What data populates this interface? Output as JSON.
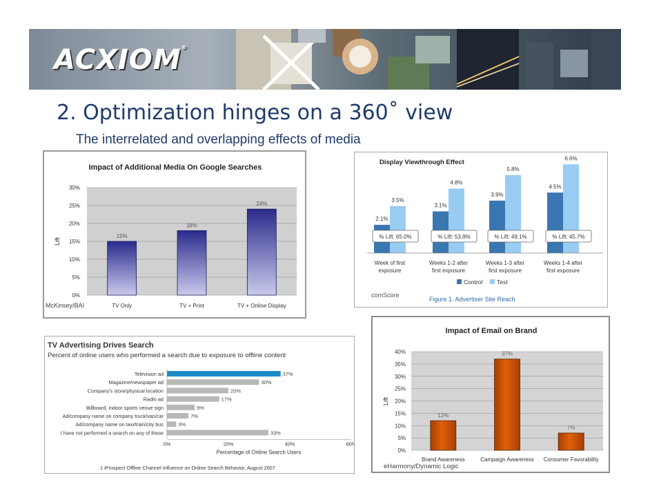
{
  "header": {
    "logo_text": "ACXIOM",
    "title": "2.  Optimization hinges on a 360˚ view",
    "subtitle": "The interrelated and overlapping effects of media"
  },
  "chart_data": [
    {
      "id": "google",
      "type": "bar",
      "title": "Impact of Additional Media On Google Searches",
      "ylabel": "Lift",
      "categories": [
        "TV Only",
        "TV + Print",
        "TV + Online Display"
      ],
      "values": [
        15,
        18,
        24
      ],
      "data_labels": [
        "15%",
        "18%",
        "24%"
      ],
      "yticks": [
        "0%",
        "5%",
        "10%",
        "15%",
        "20%",
        "25%",
        "30%"
      ],
      "ylim": [
        0,
        30
      ],
      "source": "McKinsey/BAI",
      "color": "#2b2b8c"
    },
    {
      "id": "display",
      "type": "bar",
      "title": "Display Viewthrough Effect",
      "categories": [
        "Week of first exposure",
        "Weeks 1-2 after first exposure",
        "Weeks 1-3 after first exposure",
        "Weeks 1-4 after first exposure"
      ],
      "category_lines": [
        [
          "Week of first",
          "exposure"
        ],
        [
          "Weeks 1-2 after",
          "first exposure"
        ],
        [
          "Weeks 1-3 after",
          "first exposure"
        ],
        [
          "Weeks 1-4 after",
          "first exposure"
        ]
      ],
      "series": [
        {
          "name": "Control",
          "values": [
            2.1,
            3.1,
            3.9,
            4.5
          ],
          "labels": [
            "2.1%",
            "3.1%",
            "3.9%",
            "4.5%"
          ],
          "color": "#3a76b0"
        },
        {
          "name": "Test",
          "values": [
            3.5,
            4.8,
            5.8,
            6.6
          ],
          "labels": [
            "3.5%",
            "4.8%",
            "5.8%",
            "6.6%"
          ],
          "color": "#99ccf2"
        }
      ],
      "lift_labels": [
        "% Lift: 65.0%",
        "% Lift: 53.8%",
        "% Lift: 49.1%",
        "% Lift: 45.7%"
      ],
      "ylim": [
        0,
        7
      ],
      "source": "comScore",
      "caption": "Figure 1. Advertiser Site Reach"
    },
    {
      "id": "tv",
      "type": "bar",
      "orientation": "horizontal",
      "title": "TV Advertising Drives Search",
      "title_sup": "1",
      "subtitle": "Percent of online users who performed a search due to exposure to offline content",
      "categories": [
        "Television ad",
        "Magazine/newspaper ad",
        "Company's store/physical location",
        "Radio ad",
        "Billboard, indoor sports venue sign",
        "Ad/company name on company truck/van/car",
        "Ad/company name on taxi/train/city bus",
        "I have not performed a search on any of these"
      ],
      "values": [
        37,
        30,
        20,
        17,
        9,
        7,
        3,
        33
      ],
      "data_labels": [
        "37%",
        "30%",
        "20%",
        "17%",
        "9%",
        "7%",
        "3%",
        "33%"
      ],
      "xticks": [
        "0%",
        "20%",
        "40%",
        "60%"
      ],
      "xlim": [
        0,
        60
      ],
      "xlabel": "Percentage of Online Search Users",
      "footnote": "1 iProspect Offline Channel Influence on Online Search Behavior, August 2007",
      "colors": {
        "highlight": "#1a8ac4",
        "normal": "#b8b8b8"
      }
    },
    {
      "id": "email",
      "type": "bar",
      "title": "Impact of Email on Brand",
      "ylabel": "Lift",
      "categories": [
        "Brand Awareness",
        "Campaign Awareness",
        "Consumer Favorability"
      ],
      "values": [
        12,
        37,
        7
      ],
      "data_labels": [
        "12%",
        "37%",
        "7%"
      ],
      "yticks": [
        "0%",
        "5%",
        "10%",
        "15%",
        "20%",
        "25%",
        "30%",
        "35%",
        "40%"
      ],
      "ylim": [
        0,
        40
      ],
      "source": "eHarmony/Dynamic Logic",
      "color": "#e0600a"
    }
  ]
}
